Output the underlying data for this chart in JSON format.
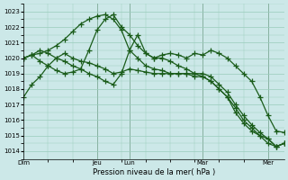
{
  "title": "Pression niveau de la mer( hPa )",
  "bg_color": "#cce8e8",
  "grid_color": "#99ccbb",
  "line_color": "#1a5c1a",
  "ylim": [
    1013.5,
    1023.5
  ],
  "yticks": [
    1014,
    1015,
    1016,
    1017,
    1018,
    1019,
    1020,
    1021,
    1022,
    1023
  ],
  "day_labels": [
    "Dim",
    "Jeu",
    "Lun",
    "Mar",
    "Mer"
  ],
  "day_positions": [
    0,
    9,
    13,
    22,
    30
  ],
  "n_total": 33,
  "series": [
    {
      "x": [
        0,
        1,
        2,
        3,
        4,
        5,
        6,
        7,
        8,
        9,
        10,
        11,
        12,
        13,
        14,
        15,
        16,
        17,
        18,
        19,
        20,
        21,
        22,
        23,
        24,
        25,
        26,
        27,
        28,
        29,
        30,
        31,
        32
      ],
      "y": [
        1017.5,
        1018.3,
        1018.8,
        1019.5,
        1020.0,
        1020.3,
        1020.0,
        1019.8,
        1019.7,
        1019.5,
        1019.3,
        1019.0,
        1019.1,
        1019.3,
        1019.2,
        1019.1,
        1019.0,
        1019.0,
        1019.0,
        1019.0,
        1019.0,
        1018.8,
        1018.8,
        1018.5,
        1018.0,
        1017.5,
        1016.5,
        1015.8,
        1015.3,
        1015.0,
        1014.5,
        1014.3,
        1014.5
      ]
    },
    {
      "x": [
        0,
        1,
        2,
        3,
        4,
        5,
        6,
        7,
        8,
        9,
        10,
        11,
        12,
        13,
        14,
        15,
        16,
        17,
        18,
        19,
        20,
        21,
        22,
        23,
        24,
        25,
        26,
        27,
        28,
        29,
        30,
        31,
        32
      ],
      "y": [
        1020.0,
        1020.2,
        1020.3,
        1020.5,
        1020.8,
        1021.2,
        1021.7,
        1022.2,
        1022.5,
        1022.7,
        1022.8,
        1022.5,
        1021.8,
        1020.5,
        1020.0,
        1019.5,
        1019.3,
        1019.2,
        1019.0,
        1019.0,
        1019.0,
        1019.0,
        1019.0,
        1018.8,
        1018.3,
        1017.8,
        1017.0,
        1016.3,
        1015.7,
        1015.2,
        1014.8,
        1014.3,
        1014.5
      ]
    },
    {
      "x": [
        0,
        1,
        2,
        3,
        4,
        5,
        6,
        7,
        8,
        9,
        10,
        11,
        12,
        13,
        14,
        15,
        16,
        17,
        18,
        19,
        20,
        21,
        22,
        23,
        24,
        25,
        26,
        27,
        28,
        29,
        30,
        31,
        32
      ],
      "y": [
        1020.0,
        1020.2,
        1019.8,
        1019.5,
        1019.2,
        1019.0,
        1019.1,
        1019.3,
        1020.5,
        1021.8,
        1022.5,
        1022.8,
        1022.0,
        1021.5,
        1020.8,
        1020.3,
        1020.0,
        1020.0,
        1019.8,
        1019.5,
        1019.3,
        1019.0,
        1018.8,
        1018.5,
        1018.0,
        1017.5,
        1016.8,
        1016.0,
        1015.5,
        1015.0,
        1014.8,
        1014.3,
        1014.5
      ]
    },
    {
      "x": [
        0,
        1,
        2,
        3,
        4,
        5,
        6,
        7,
        8,
        9,
        10,
        11,
        12,
        13,
        14,
        15,
        16,
        17,
        18,
        19,
        20,
        21,
        22,
        23,
        24,
        25,
        26,
        27,
        28,
        29,
        30,
        31,
        32
      ],
      "y": [
        1020.0,
        1020.2,
        1020.5,
        1020.3,
        1020.0,
        1019.8,
        1019.5,
        1019.3,
        1019.0,
        1018.8,
        1018.5,
        1018.3,
        1019.0,
        1020.5,
        1021.5,
        1020.3,
        1020.0,
        1020.2,
        1020.3,
        1020.2,
        1020.0,
        1020.3,
        1020.2,
        1020.5,
        1020.3,
        1020.0,
        1019.5,
        1019.0,
        1018.5,
        1017.5,
        1016.3,
        1015.3,
        1015.2
      ]
    }
  ]
}
